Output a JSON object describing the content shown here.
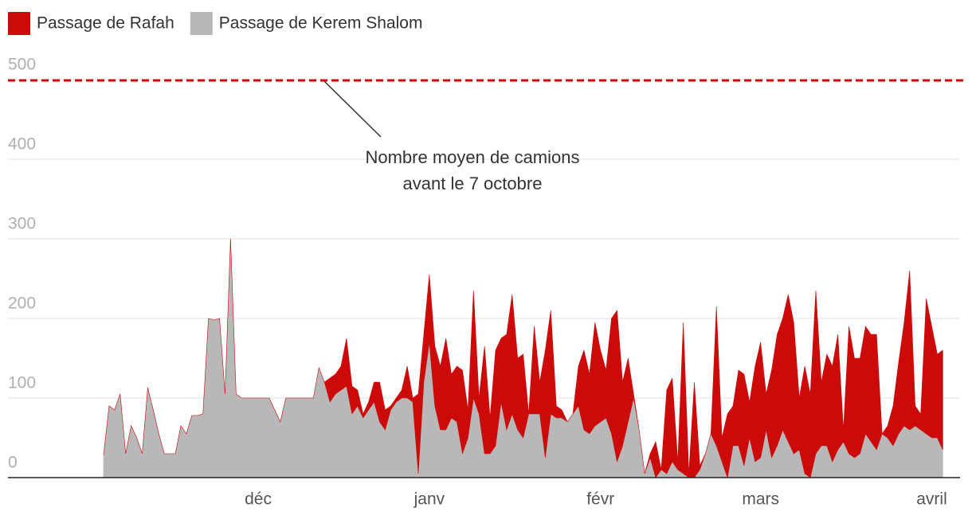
{
  "chart_data": {
    "type": "stacked_area",
    "categories": [
      null,
      null,
      null,
      null,
      null,
      null,
      null,
      null,
      null,
      null,
      null,
      null,
      null,
      null,
      null,
      null,
      null,
      null,
      null,
      null,
      null,
      null,
      null,
      null,
      null,
      null,
      null,
      null,
      "déc",
      null,
      null,
      null,
      null,
      null,
      null,
      null,
      null,
      null,
      null,
      null,
      null,
      null,
      null,
      null,
      null,
      null,
      null,
      null,
      null,
      null,
      null,
      null,
      null,
      null,
      null,
      null,
      null,
      null,
      null,
      "janv",
      null,
      null,
      null,
      null,
      null,
      null,
      null,
      null,
      null,
      null,
      null,
      null,
      null,
      null,
      null,
      null,
      null,
      null,
      null,
      null,
      null,
      null,
      null,
      null,
      null,
      null,
      null,
      null,
      null,
      null,
      "févr",
      null,
      null,
      null,
      null,
      null,
      null,
      null,
      null,
      null,
      null,
      null,
      null,
      null,
      null,
      null,
      null,
      null,
      null,
      null,
      null,
      null,
      null,
      null,
      null,
      null,
      null,
      null,
      null,
      "mars",
      null,
      null,
      null,
      null,
      null,
      null,
      null,
      null,
      null,
      null,
      null,
      null,
      null,
      null,
      null,
      null,
      null,
      null,
      null,
      null,
      null,
      null,
      null,
      null,
      null,
      null,
      null,
      null,
      null,
      null,
      "avril",
      null,
      null
    ],
    "series": [
      {
        "name": "Passage de Kerem Shalom",
        "color": "#b8b8b8",
        "values": [
          28,
          90,
          85,
          105,
          30,
          65,
          50,
          30,
          113,
          85,
          55,
          30,
          30,
          30,
          65,
          55,
          78,
          78,
          80,
          200,
          198,
          200,
          105,
          300,
          105,
          100,
          100,
          100,
          100,
          100,
          100,
          85,
          70,
          100,
          100,
          100,
          100,
          100,
          100,
          138,
          120,
          95,
          105,
          110,
          115,
          80,
          90,
          75,
          85,
          95,
          70,
          60,
          85,
          95,
          100,
          100,
          95,
          5,
          120,
          170,
          90,
          60,
          60,
          75,
          70,
          30,
          50,
          100,
          80,
          30,
          30,
          40,
          95,
          60,
          80,
          60,
          50,
          80,
          80,
          80,
          25,
          80,
          75,
          75,
          70,
          80,
          90,
          60,
          55,
          65,
          70,
          75,
          55,
          20,
          40,
          70,
          100,
          60,
          5,
          25,
          0,
          10,
          5,
          20,
          10,
          5,
          0,
          0,
          10,
          30,
          55,
          40,
          20,
          0,
          40,
          40,
          15,
          50,
          20,
          25,
          60,
          25,
          40,
          60,
          45,
          30,
          35,
          5,
          0,
          30,
          40,
          40,
          20,
          35,
          45,
          30,
          25,
          30,
          55,
          45,
          35,
          55,
          50,
          40,
          55,
          65,
          60,
          65,
          60,
          55,
          50,
          50,
          35
        ]
      },
      {
        "name": "Passage de Rafah",
        "color": "#cc0a0a",
        "values": [
          0,
          0,
          0,
          0,
          0,
          0,
          0,
          0,
          0,
          0,
          0,
          0,
          0,
          0,
          0,
          0,
          0,
          0,
          0,
          0,
          0,
          0,
          0,
          0,
          0,
          0,
          0,
          0,
          0,
          0,
          0,
          0,
          0,
          0,
          0,
          0,
          0,
          0,
          0,
          0,
          0,
          30,
          25,
          30,
          60,
          35,
          20,
          5,
          10,
          25,
          50,
          25,
          5,
          5,
          10,
          40,
          5,
          100,
          60,
          85,
          75,
          80,
          115,
          55,
          70,
          105,
          35,
          135,
          20,
          135,
          45,
          120,
          80,
          120,
          150,
          90,
          105,
          0,
          110,
          40,
          135,
          130,
          15,
          10,
          0,
          0,
          50,
          100,
          75,
          130,
          90,
          60,
          145,
          190,
          80,
          80,
          5,
          0,
          0,
          5,
          45,
          0,
          105,
          105,
          10,
          190,
          5,
          120,
          5,
          0,
          0,
          175,
          30,
          80,
          50,
          95,
          115,
          45,
          120,
          145,
          45,
          110,
          140,
          140,
          185,
          165,
          65,
          135,
          105,
          205,
          80,
          115,
          120,
          145,
          15,
          160,
          125,
          120,
          135,
          135,
          145,
          0,
          15,
          50,
          90,
          130,
          200,
          25,
          20,
          170,
          140,
          105,
          125
        ]
      }
    ],
    "reference_line": {
      "value": 500,
      "color": "#cc0a0a",
      "label": [
        "Nombre moyen de camions",
        "avant le 7 octobre"
      ]
    },
    "ylim": [
      0,
      500
    ],
    "yticks": [
      0,
      100,
      200,
      300,
      400,
      500
    ],
    "grid": true,
    "legend": "top-left"
  }
}
